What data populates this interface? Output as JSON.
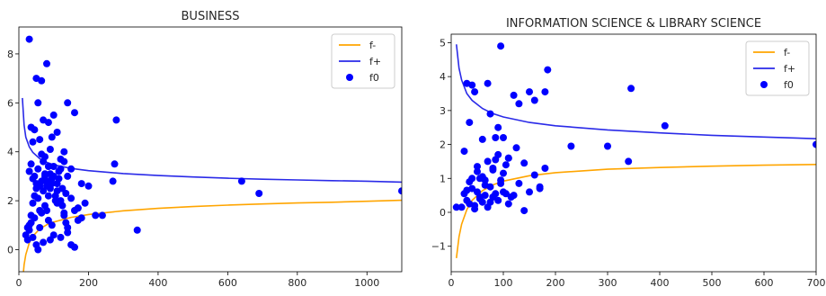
{
  "chart_data": [
    {
      "type": "scatter",
      "title": "BUSINESS",
      "xlabel": "",
      "ylabel": "",
      "xlim": [
        0,
        1100
      ],
      "ylim": [
        -0.9,
        9.1
      ],
      "xticks": [
        0,
        200,
        400,
        600,
        800,
        1000
      ],
      "yticks": [
        0,
        2,
        4,
        6,
        8
      ],
      "grid": false,
      "legend": "top-right",
      "series": [
        {
          "name": "f-",
          "kind": "line",
          "color": "#ffa500",
          "x": [
            10,
            15,
            20,
            30,
            40,
            60,
            80,
            100,
            150,
            200,
            300,
            400,
            500,
            600,
            700,
            800,
            900,
            1000,
            1100
          ],
          "y": [
            -1.4,
            -0.62,
            -0.2,
            0.28,
            0.55,
            0.85,
            1.02,
            1.13,
            1.32,
            1.44,
            1.59,
            1.69,
            1.76,
            1.82,
            1.87,
            1.91,
            1.94,
            1.98,
            2.02
          ]
        },
        {
          "name": "f+",
          "kind": "line",
          "color": "#2a2ae8",
          "x": [
            10,
            15,
            20,
            30,
            40,
            60,
            80,
            100,
            150,
            200,
            300,
            400,
            500,
            600,
            700,
            800,
            900,
            1000,
            1100
          ],
          "y": [
            6.2,
            5.1,
            4.6,
            4.2,
            3.98,
            3.72,
            3.57,
            3.47,
            3.32,
            3.23,
            3.11,
            3.03,
            2.97,
            2.92,
            2.88,
            2.85,
            2.82,
            2.8,
            2.76
          ]
        },
        {
          "name": "f0",
          "kind": "scatter",
          "color": "#0000ff",
          "x": [
            30,
            35,
            40,
            45,
            50,
            55,
            60,
            65,
            70,
            75,
            80,
            85,
            90,
            95,
            100,
            110,
            120,
            130,
            140,
            150,
            160,
            170,
            180,
            200,
            220,
            240,
            270,
            275,
            280,
            340,
            640,
            690,
            1100,
            25,
            30,
            35,
            40,
            45,
            50,
            55,
            60,
            65,
            70,
            75,
            80,
            85,
            90,
            95,
            100,
            105,
            110,
            115,
            120,
            125,
            130,
            135,
            140,
            150,
            160,
            170,
            180,
            190,
            30,
            35,
            40,
            45,
            50,
            55,
            60,
            65,
            70,
            75,
            80,
            85,
            90,
            95,
            100,
            105,
            110,
            115,
            120,
            125,
            130,
            135,
            140,
            20,
            25,
            30,
            35,
            40,
            45,
            50,
            55,
            60,
            65,
            70,
            75,
            80,
            85,
            90,
            95,
            100,
            110,
            120,
            130,
            140,
            150,
            160,
            170
          ],
          "y": [
            8.6,
            5.0,
            4.4,
            4.9,
            7.0,
            6.0,
            4.5,
            6.9,
            5.3,
            3.8,
            7.6,
            5.2,
            4.1,
            4.6,
            5.5,
            4.8,
            3.7,
            4.0,
            6.0,
            3.3,
            5.6,
            1.7,
            2.7,
            2.6,
            1.4,
            1.4,
            2.8,
            3.5,
            5.3,
            0.8,
            2.8,
            2.3,
            2.4,
            0.9,
            1.0,
            1.4,
            1.9,
            2.2,
            2.5,
            2.1,
            1.6,
            2.8,
            2.4,
            3.0,
            2.6,
            2.2,
            3.1,
            2.9,
            3.4,
            2.0,
            2.7,
            3.2,
            3.3,
            2.5,
            3.6,
            2.3,
            3.0,
            2.1,
            1.6,
            1.2,
            1.3,
            1.9,
            3.2,
            3.5,
            2.9,
            3.0,
            2.7,
            3.3,
            2.6,
            3.9,
            3.6,
            3.1,
            2.8,
            3.4,
            2.5,
            2.7,
            3.0,
            2.2,
            2.4,
            2.9,
            2.0,
            1.8,
            1.5,
            1.1,
            0.7,
            0.6,
            0.4,
            0.8,
            1.1,
            0.5,
            1.3,
            0.2,
            0.0,
            0.9,
            1.5,
            0.3,
            1.8,
            1.6,
            1.2,
            0.4,
            1.0,
            0.6,
            1.9,
            0.5,
            1.4,
            0.9,
            0.2,
            0.1,
            1.7
          ]
        }
      ]
    },
    {
      "type": "scatter",
      "title": "INFORMATION SCIENCE & LIBRARY SCIENCE",
      "xlabel": "",
      "ylabel": "",
      "xlim": [
        0,
        700
      ],
      "ylim": [
        -1.75,
        5.25
      ],
      "xticks": [
        0,
        100,
        200,
        300,
        400,
        500,
        600,
        700
      ],
      "yticks": [
        -1,
        0,
        1,
        2,
        3,
        4,
        5
      ],
      "grid": false,
      "legend": "top-right",
      "series": [
        {
          "name": "f-",
          "kind": "line",
          "color": "#ffa500",
          "x": [
            10,
            15,
            20,
            30,
            40,
            60,
            80,
            100,
            150,
            200,
            300,
            400,
            500,
            600,
            700
          ],
          "y": [
            -1.35,
            -0.72,
            -0.35,
            0.08,
            0.35,
            0.64,
            0.81,
            0.92,
            1.08,
            1.17,
            1.27,
            1.32,
            1.36,
            1.39,
            1.41
          ]
        },
        {
          "name": "f+",
          "kind": "line",
          "color": "#2a2ae8",
          "x": [
            10,
            15,
            20,
            30,
            40,
            60,
            80,
            100,
            150,
            200,
            300,
            400,
            500,
            600,
            700
          ],
          "y": [
            4.95,
            4.25,
            3.9,
            3.5,
            3.3,
            3.06,
            2.91,
            2.81,
            2.65,
            2.55,
            2.43,
            2.34,
            2.27,
            2.22,
            2.17
          ]
        },
        {
          "name": "f0",
          "kind": "scatter",
          "color": "#0000ff",
          "x": [
            10,
            30,
            35,
            40,
            45,
            50,
            55,
            60,
            65,
            70,
            75,
            80,
            85,
            90,
            95,
            100,
            110,
            120,
            130,
            140,
            150,
            160,
            170,
            180,
            185,
            230,
            300,
            340,
            345,
            410,
            700,
            20,
            25,
            30,
            35,
            40,
            45,
            50,
            55,
            60,
            65,
            70,
            75,
            80,
            85,
            90,
            95,
            100,
            105,
            110,
            115,
            120,
            125,
            130,
            140,
            150,
            160,
            170,
            180,
            25,
            30,
            35,
            40,
            45,
            50,
            55,
            60,
            65,
            70,
            75,
            80,
            85,
            90,
            95,
            100,
            105,
            110
          ],
          "y": [
            0.15,
            3.8,
            2.65,
            3.75,
            3.55,
            1.2,
            1.0,
            2.15,
            0.5,
            3.8,
            2.9,
            1.3,
            2.2,
            2.5,
            4.9,
            2.2,
            1.6,
            3.45,
            3.2,
            1.45,
            3.55,
            3.3,
            0.75,
            3.55,
            4.2,
            1.95,
            1.95,
            1.5,
            3.65,
            2.55,
            2.0,
            0.15,
            0.55,
            0.35,
            0.9,
            0.7,
            0.2,
            1.35,
            0.45,
            1.05,
            0.8,
            1.5,
            0.3,
            1.25,
            0.55,
            1.7,
            0.95,
            0.6,
            1.4,
            1.6,
            0.45,
            0.5,
            1.9,
            0.85,
            0.05,
            0.6,
            1.1,
            0.7,
            1.3,
            1.8,
            0.65,
            0.25,
            1.0,
            0.1,
            0.6,
            0.4,
            0.3,
            0.95,
            0.15,
            0.75,
            0.45,
            1.55,
            0.35,
            0.85,
            1.15,
            0.55,
            0.25
          ]
        }
      ]
    }
  ]
}
